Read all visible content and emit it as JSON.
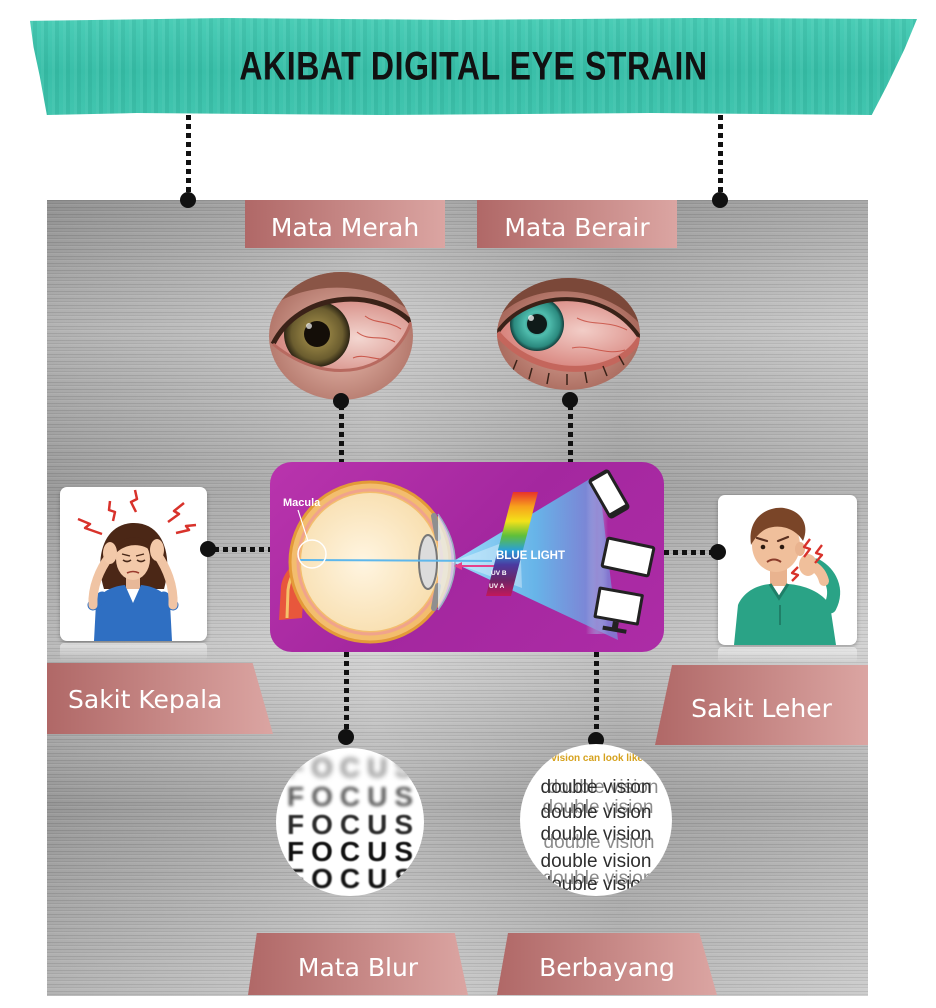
{
  "title": "AKIBAT DIGITAL EYE STRAIN",
  "labels": {
    "mata_merah": "Mata Merah",
    "mata_berair": "Mata Berair",
    "sakit_kepala": "Sakit Kepala",
    "sakit_leher": "Sakit Leher",
    "mata_blur": "Mata Blur",
    "berbayang": "Berbayang"
  },
  "diagram": {
    "macula": "Macula",
    "blue_light": "BLUE LIGHT",
    "uv_b": "UV B",
    "uv_a": "UV A"
  },
  "focus_chart": {
    "rows": [
      "FOCUS",
      "FOCUS",
      "FOCUS",
      "FOCUS",
      "FOCUS"
    ]
  },
  "double_vision_sample": {
    "caption": "e vision can look like t",
    "lines": [
      "double vision",
      "double vision",
      "double vision",
      "double vision",
      "double vision"
    ]
  },
  "icons": {
    "red_eye": "red-eye-photo",
    "watery_eye": "watery-eye-photo",
    "headache": "headache-woman-illustration",
    "neck_pain": "neck-pain-man-illustration",
    "phone": "smartphone-icon",
    "tablet": "tablet-icon",
    "monitor": "monitor-icon"
  },
  "colors": {
    "banner": "#3cc4ad",
    "title_text": "#111111",
    "label_gradient": [
      "#b06867",
      "#dba5a2"
    ],
    "panel": "#a92aa3",
    "connector": "#111111",
    "metal": "#b4b4b4"
  }
}
